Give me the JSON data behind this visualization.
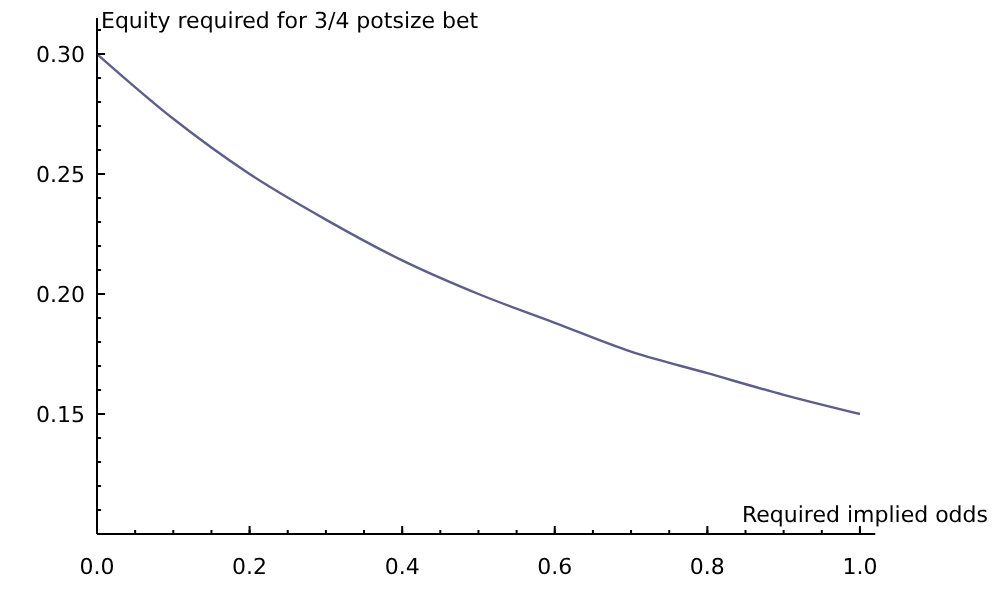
{
  "chart_data": {
    "type": "line",
    "title": "Equity required for 3/4 potsize bet",
    "xlabel": "Required implied odds",
    "x": [
      0,
      0.1,
      0.2,
      0.3,
      0.4,
      0.5,
      0.6,
      0.7,
      0.8,
      0.9,
      1.0
    ],
    "series": [
      {
        "color": "#5e5e8c",
        "values": [
          0.3,
          0.273,
          0.25,
          0.231,
          0.214,
          0.2,
          0.188,
          0.176,
          0.167,
          0.158,
          0.15
        ]
      }
    ],
    "xlim": [
      0,
      1.02
    ],
    "ylim": [
      0.1,
      0.315
    ],
    "xticks": [
      {
        "value": 0,
        "label": "0.0"
      },
      {
        "value": 0.2,
        "label": "0.2"
      },
      {
        "value": 0.4,
        "label": "0.4"
      },
      {
        "value": 0.6,
        "label": "0.6"
      },
      {
        "value": 0.8,
        "label": "0.8"
      },
      {
        "value": 1,
        "label": "1.0"
      }
    ],
    "yticks": [
      {
        "value": 0.15,
        "label": "0.15"
      },
      {
        "value": 0.2,
        "label": "0.20"
      },
      {
        "value": 0.25,
        "label": "0.25"
      },
      {
        "value": 0.3,
        "label": "0.30"
      }
    ],
    "grid": false,
    "marker": "none",
    "line_style": "solid"
  }
}
